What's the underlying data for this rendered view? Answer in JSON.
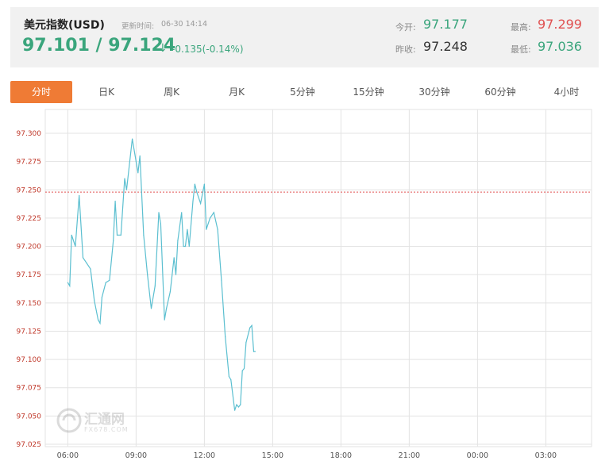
{
  "header": {
    "title": "美元指数(USD)",
    "update_label": "更新时间:",
    "update_time": "06-30 14:14",
    "price": "97.101 / 97.124",
    "arrow": "↓",
    "change": "-0.135(-0.14%)",
    "open_label": "今开:",
    "open_value": "97.177",
    "prev_close_label": "昨收:",
    "prev_close_value": "97.248",
    "high_label": "最高:",
    "high_value": "97.299",
    "low_label": "最低:",
    "low_value": "97.036"
  },
  "tabs": [
    "分时",
    "日K",
    "周K",
    "月K",
    "5分钟",
    "15分钟",
    "30分钟",
    "60分钟",
    "4小时"
  ],
  "active_tab": 0,
  "watermark": {
    "text": "汇通网",
    "sub": "FX678.COM"
  },
  "colors": {
    "line": "#5bbfd0",
    "reference": "#e05050",
    "grid": "#e3e3e3",
    "axis_text": "#c0392b",
    "accent": "#ef7b35",
    "green": "#3aa57c"
  },
  "chart_data": {
    "type": "line",
    "title": "",
    "xlabel": "",
    "ylabel": "",
    "x_ticks": [
      "06:00",
      "09:00",
      "12:00",
      "15:00",
      "18:00",
      "21:00",
      "00:00",
      "03:00"
    ],
    "y_ticks": [
      "97.025",
      "97.050",
      "97.075",
      "97.100",
      "97.125",
      "97.150",
      "97.175",
      "97.200",
      "97.225",
      "97.250",
      "97.275",
      "97.300"
    ],
    "ylim": [
      97.025,
      97.3
    ],
    "reference_value": 97.248,
    "series": [
      {
        "values": [
          [
            "06:00",
            97.168
          ],
          [
            "06:05",
            97.165
          ],
          [
            "06:10",
            97.21
          ],
          [
            "06:20",
            97.2
          ],
          [
            "06:30",
            97.245
          ],
          [
            "06:40",
            97.19
          ],
          [
            "06:50",
            97.185
          ],
          [
            "07:00",
            97.18
          ],
          [
            "07:10",
            97.152
          ],
          [
            "07:20",
            97.135
          ],
          [
            "07:25",
            97.132
          ],
          [
            "07:30",
            97.155
          ],
          [
            "07:40",
            97.168
          ],
          [
            "07:50",
            97.17
          ],
          [
            "08:00",
            97.205
          ],
          [
            "08:05",
            97.24
          ],
          [
            "08:10",
            97.21
          ],
          [
            "08:20",
            97.21
          ],
          [
            "08:30",
            97.26
          ],
          [
            "08:35",
            97.25
          ],
          [
            "08:50",
            97.295
          ],
          [
            "09:00",
            97.275
          ],
          [
            "09:05",
            97.265
          ],
          [
            "09:10",
            97.28
          ],
          [
            "09:20",
            97.21
          ],
          [
            "09:30",
            97.175
          ],
          [
            "09:40",
            97.145
          ],
          [
            "09:50",
            97.165
          ],
          [
            "10:00",
            97.23
          ],
          [
            "10:05",
            97.22
          ],
          [
            "10:15",
            97.135
          ],
          [
            "10:20",
            97.145
          ],
          [
            "10:30",
            97.16
          ],
          [
            "10:40",
            97.19
          ],
          [
            "10:45",
            97.175
          ],
          [
            "10:50",
            97.205
          ],
          [
            "11:00",
            97.23
          ],
          [
            "11:05",
            97.2
          ],
          [
            "11:10",
            97.2
          ],
          [
            "11:15",
            97.215
          ],
          [
            "11:20",
            97.2
          ],
          [
            "11:30",
            97.24
          ],
          [
            "11:35",
            97.255
          ],
          [
            "11:40",
            97.248
          ],
          [
            "11:50",
            97.238
          ],
          [
            "12:00",
            97.255
          ],
          [
            "12:05",
            97.215
          ],
          [
            "12:15",
            97.225
          ],
          [
            "12:25",
            97.23
          ],
          [
            "12:35",
            97.215
          ],
          [
            "12:45",
            97.17
          ],
          [
            "12:55",
            97.12
          ],
          [
            "13:05",
            97.085
          ],
          [
            "13:10",
            97.082
          ],
          [
            "13:20",
            97.055
          ],
          [
            "13:25",
            97.06
          ],
          [
            "13:30",
            97.058
          ],
          [
            "13:35",
            97.06
          ],
          [
            "13:40",
            97.09
          ],
          [
            "13:45",
            97.092
          ],
          [
            "13:50",
            97.115
          ],
          [
            "14:00",
            97.128
          ],
          [
            "14:05",
            97.13
          ],
          [
            "14:10",
            97.107
          ],
          [
            "14:14",
            97.107
          ]
        ]
      }
    ],
    "grid": true
  }
}
